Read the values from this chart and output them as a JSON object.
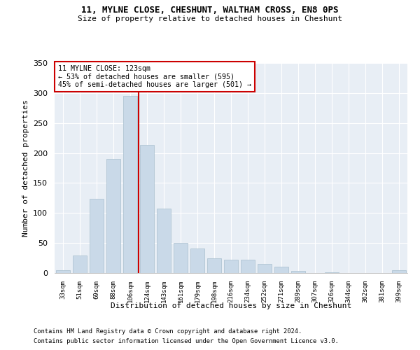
{
  "title1": "11, MYLNE CLOSE, CHESHUNT, WALTHAM CROSS, EN8 0PS",
  "title2": "Size of property relative to detached houses in Cheshunt",
  "xlabel": "Distribution of detached houses by size in Cheshunt",
  "ylabel": "Number of detached properties",
  "footer1": "Contains HM Land Registry data © Crown copyright and database right 2024.",
  "footer2": "Contains public sector information licensed under the Open Government Licence v3.0.",
  "annotation_line1": "11 MYLNE CLOSE: 123sqm",
  "annotation_line2": "← 53% of detached houses are smaller (595)",
  "annotation_line3": "45% of semi-detached houses are larger (501) →",
  "bar_color": "#c9d9e8",
  "bar_edge_color": "#a8bece",
  "vline_color": "#cc0000",
  "background_color": "#e8eef5",
  "categories": [
    "33sqm",
    "51sqm",
    "69sqm",
    "88sqm",
    "106sqm",
    "124sqm",
    "143sqm",
    "161sqm",
    "179sqm",
    "198sqm",
    "216sqm",
    "234sqm",
    "252sqm",
    "271sqm",
    "289sqm",
    "307sqm",
    "326sqm",
    "344sqm",
    "362sqm",
    "381sqm",
    "399sqm"
  ],
  "values": [
    5,
    29,
    124,
    190,
    295,
    213,
    107,
    50,
    41,
    24,
    22,
    22,
    15,
    10,
    3,
    0,
    1,
    0,
    0,
    0,
    5
  ],
  "ylim": [
    0,
    350
  ],
  "yticks": [
    0,
    50,
    100,
    150,
    200,
    250,
    300,
    350
  ]
}
